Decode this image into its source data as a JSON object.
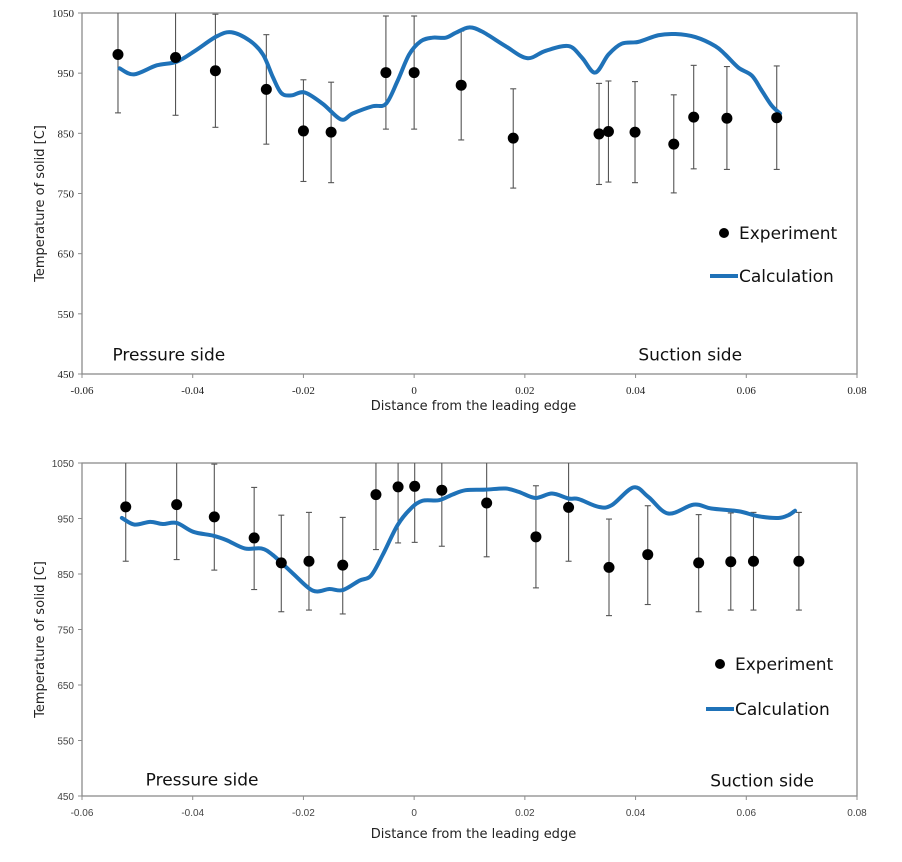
{
  "chart_data": [
    {
      "type": "scatter",
      "title": "",
      "xlabel": "Distance from the leading edge",
      "ylabel": "Temperature of solid [C]",
      "xlim": [
        -0.06,
        0.08
      ],
      "ylim": [
        450,
        1050
      ],
      "xticks": [
        -0.06,
        -0.04,
        -0.02,
        0,
        0.02,
        0.04,
        0.06,
        0.08
      ],
      "xtick_labels": [
        "-0.06",
        "-0.04",
        "-0.02",
        "0",
        "0.02",
        "0.04",
        "0.06",
        "0.08"
      ],
      "yticks": [
        450,
        550,
        650,
        750,
        850,
        950,
        1050
      ],
      "ytick_labels": [
        "450",
        "550",
        "650",
        "750",
        "850",
        "950",
        "1050"
      ],
      "grid": false,
      "legend_position": "right",
      "annotations": [
        {
          "text": "Pressure side",
          "x": -0.0545,
          "y": 482
        },
        {
          "text": "Suction side",
          "x": 0.0405,
          "y": 482
        }
      ],
      "series": [
        {
          "name": "Experiment",
          "kind": "scatter-errorbar",
          "color": "#000000",
          "points": [
            {
              "x": -0.0535,
              "y": 981,
              "low": 884,
              "high": 1080
            },
            {
              "x": -0.0431,
              "y": 976,
              "low": 880,
              "high": 1080
            },
            {
              "x": -0.0359,
              "y": 954,
              "low": 860,
              "high": 1048
            },
            {
              "x": -0.0267,
              "y": 923,
              "low": 832,
              "high": 1014
            },
            {
              "x": -0.02,
              "y": 854,
              "low": 770,
              "high": 939
            },
            {
              "x": -0.015,
              "y": 852,
              "low": 768,
              "high": 935
            },
            {
              "x": -0.0051,
              "y": 951,
              "low": 857,
              "high": 1045
            },
            {
              "x": 0.0,
              "y": 951,
              "low": 857,
              "high": 1045
            },
            {
              "x": 0.0085,
              "y": 930,
              "low": 839,
              "high": 1020
            },
            {
              "x": 0.0179,
              "y": 842,
              "low": 759,
              "high": 924
            },
            {
              "x": 0.0334,
              "y": 849,
              "low": 765,
              "high": 933
            },
            {
              "x": 0.0351,
              "y": 853,
              "low": 769,
              "high": 937
            },
            {
              "x": 0.0399,
              "y": 852,
              "low": 768,
              "high": 936
            },
            {
              "x": 0.0469,
              "y": 832,
              "low": 751,
              "high": 914
            },
            {
              "x": 0.0505,
              "y": 877,
              "low": 791,
              "high": 963
            },
            {
              "x": 0.0565,
              "y": 875,
              "low": 790,
              "high": 961
            },
            {
              "x": 0.0655,
              "y": 876,
              "low": 790,
              "high": 962
            }
          ]
        },
        {
          "name": "Calculation",
          "kind": "line",
          "color": "#1f72b8",
          "x": [
            -0.0532,
            -0.0506,
            -0.0465,
            -0.0429,
            -0.0396,
            -0.0357,
            -0.033,
            -0.0297,
            -0.0273,
            -0.0255,
            -0.024,
            -0.0222,
            -0.0198,
            -0.0165,
            -0.0132,
            -0.0111,
            -0.0075,
            -0.0051,
            -0.003,
            -0.0009,
            0.0012,
            0.0033,
            0.0057,
            0.0075,
            0.0099,
            0.0123,
            0.0165,
            0.0204,
            0.0237,
            0.0279,
            0.0303,
            0.0327,
            0.0351,
            0.0375,
            0.0405,
            0.0441,
            0.0472,
            0.0508,
            0.0544,
            0.0562,
            0.0586,
            0.061,
            0.0628,
            0.0646,
            0.0661
          ],
          "y": [
            958,
            948,
            963,
            969,
            987,
            1011,
            1018,
            1004,
            981,
            943,
            917,
            913,
            918,
            899,
            873,
            883,
            895,
            899,
            937,
            981,
            1003,
            1009,
            1009,
            1017,
            1026,
            1019,
            995,
            975,
            987,
            995,
            976,
            951,
            981,
            999,
            1002,
            1013,
            1015,
            1010,
            995,
            981,
            959,
            946,
            921,
            896,
            883
          ]
        }
      ]
    },
    {
      "type": "scatter",
      "title": "",
      "xlabel": "Distance from the leading edge",
      "ylabel": "Temperature of solid [C]",
      "xlim": [
        -0.06,
        0.08
      ],
      "ylim": [
        450,
        1050
      ],
      "xticks": [
        -0.06,
        -0.04,
        -0.02,
        0,
        0.02,
        0.04,
        0.06,
        0.08
      ],
      "xtick_labels": [
        "-0.06",
        "-0.04",
        "-0.02",
        "0",
        "0.02",
        "0.04",
        "0.06",
        "0.08"
      ],
      "yticks": [
        450,
        550,
        650,
        750,
        850,
        950,
        1050
      ],
      "ytick_labels": [
        "450",
        "550",
        "650",
        "750",
        "850",
        "950",
        "1050"
      ],
      "grid": false,
      "legend_position": "right",
      "annotations": [
        {
          "text": "Pressure side",
          "x": -0.0485,
          "y": 480
        },
        {
          "text": "Suction side",
          "x": 0.0535,
          "y": 478
        }
      ],
      "series": [
        {
          "name": "Experiment",
          "kind": "scatter-errorbar",
          "color": "#000000",
          "points": [
            {
              "x": -0.0521,
              "y": 971,
              "low": 873,
              "high": 1080
            },
            {
              "x": -0.0429,
              "y": 975,
              "low": 876,
              "high": 1080
            },
            {
              "x": -0.0361,
              "y": 953,
              "low": 857,
              "high": 1048
            },
            {
              "x": -0.0289,
              "y": 915,
              "low": 822,
              "high": 1006
            },
            {
              "x": -0.024,
              "y": 870,
              "low": 782,
              "high": 956
            },
            {
              "x": -0.019,
              "y": 873,
              "low": 785,
              "high": 961
            },
            {
              "x": -0.0129,
              "y": 866,
              "low": 778,
              "high": 952
            },
            {
              "x": -0.0069,
              "y": 993,
              "low": 894,
              "high": 1080
            },
            {
              "x": -0.0029,
              "y": 1007,
              "low": 906,
              "high": 1080
            },
            {
              "x": 0.0001,
              "y": 1008,
              "low": 907,
              "high": 1080
            },
            {
              "x": 0.005,
              "y": 1001,
              "low": 900,
              "high": 1080
            },
            {
              "x": 0.0131,
              "y": 978,
              "low": 881,
              "high": 1080
            },
            {
              "x": 0.022,
              "y": 917,
              "low": 825,
              "high": 1009
            },
            {
              "x": 0.0279,
              "y": 970,
              "low": 873,
              "high": 1080
            },
            {
              "x": 0.0352,
              "y": 862,
              "low": 775,
              "high": 949
            },
            {
              "x": 0.0422,
              "y": 885,
              "low": 795,
              "high": 973
            },
            {
              "x": 0.0514,
              "y": 870,
              "low": 782,
              "high": 957
            },
            {
              "x": 0.0572,
              "y": 872,
              "low": 785,
              "high": 960
            },
            {
              "x": 0.0613,
              "y": 873,
              "low": 785,
              "high": 961
            },
            {
              "x": 0.0695,
              "y": 873,
              "low": 785,
              "high": 961
            }
          ]
        },
        {
          "name": "Calculation",
          "kind": "line",
          "color": "#1f72b8",
          "x": [
            -0.0528,
            -0.0505,
            -0.0477,
            -0.0454,
            -0.0429,
            -0.0399,
            -0.0363,
            -0.0339,
            -0.0306,
            -0.0276,
            -0.0255,
            -0.0219,
            -0.0183,
            -0.0153,
            -0.0129,
            -0.0099,
            -0.0078,
            -0.0057,
            -0.003,
            -0.0006,
            0.0015,
            0.0045,
            0.0069,
            0.0093,
            0.0129,
            0.0165,
            0.0189,
            0.0219,
            0.0249,
            0.0279,
            0.0297,
            0.0333,
            0.0357,
            0.0396,
            0.0423,
            0.0459,
            0.0505,
            0.0537,
            0.0586,
            0.0622,
            0.0658,
            0.0676,
            0.0688
          ],
          "y": [
            951,
            939,
            944,
            940,
            942,
            926,
            919,
            911,
            896,
            896,
            884,
            851,
            820,
            823,
            821,
            838,
            847,
            884,
            938,
            968,
            982,
            983,
            993,
            1001,
            1002,
            1004,
            998,
            987,
            995,
            986,
            985,
            971,
            974,
            1006,
            989,
            959,
            975,
            968,
            963,
            954,
            951,
            956,
            964
          ]
        }
      ]
    }
  ]
}
